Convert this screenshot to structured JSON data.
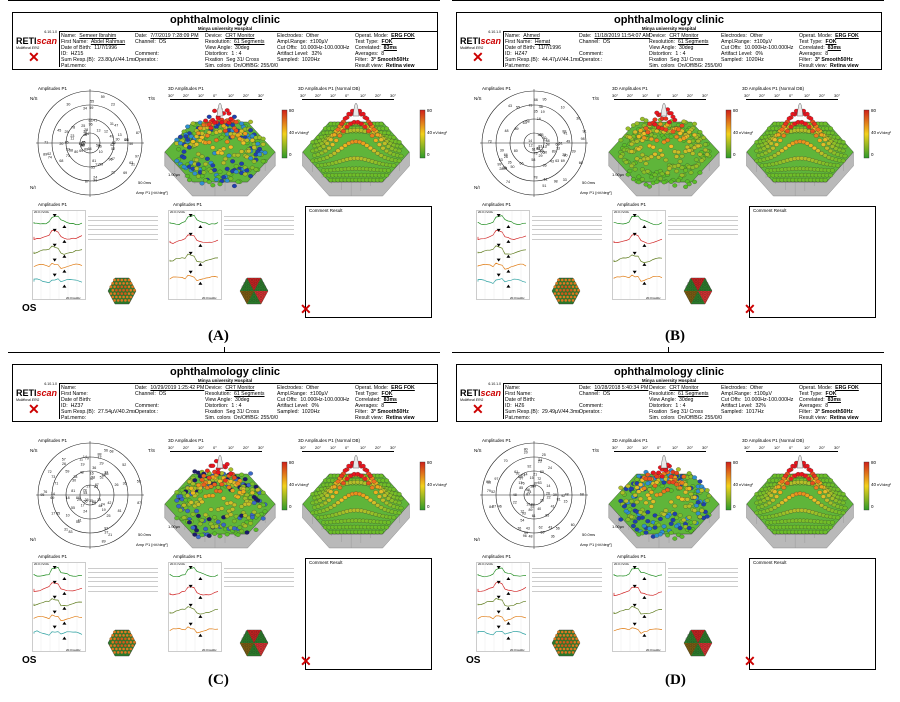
{
  "common": {
    "clinic": "ophthalmology clinic",
    "hospital": "Minya university Hospital",
    "version": "6.10.1.0",
    "brand_a": "RETI",
    "brand_b": "scan",
    "brand_sub": "Multifocal ERG",
    "labels": {
      "name": "Name:",
      "first_name": "First Name:",
      "dob": "Date of Birth:",
      "id": "ID:",
      "sum_resp": "Sum Resp.(B):",
      "pat_memo": "Pat.memo:",
      "date": "Date:",
      "channel": "Channel:",
      "comment": "Comment:",
      "operator": "Operator.:",
      "device": "Device:",
      "resolution": "Resolution:",
      "view_angle": "View Angle:",
      "distortion": "Distortion:",
      "fixation": "Fixation",
      "sim_colors": "Sim. colors",
      "electrodes": "Electrodes:",
      "ampl_range": "Ampl.Range:",
      "cut_offs": "Cut Offs:",
      "artifact": "Artifact Level:",
      "sampled": "Sampled:",
      "onoff": "On/Off/BG:",
      "operat_mode": "Operat. Mode:",
      "test_type": "Test Type:",
      "correlated": "Correlated:",
      "averages": "Averages:",
      "filter": "Filter:",
      "result_view": "Result view:"
    },
    "values": {
      "device": "CRT Monitor",
      "resolution": "61 Segments",
      "view_angle": "30deg",
      "distortion": "1 : 4",
      "fixation": "Seg 31/ Cross",
      "sim_colors": "On/Off/BG: 255/0/0",
      "electrodes": "Other",
      "ampl_range": "±100µV",
      "cut_offs": "10.000Hz-100.000Hz",
      "operat_mode": "ERG FOK",
      "test_type": "FOK",
      "correlated": "83ms",
      "averages": "8",
      "filter": "3° Smooth50Hz",
      "result_view": "Retina view"
    },
    "plot_titles": {
      "amp": "Amplitudes P1",
      "amp3d": "3D Amplitudes P1",
      "amp3d_norm": "3D Amplitudes P1 (Normal DB)",
      "comment_result": "Comment Result",
      "ns": "N/S",
      "ts": "T/S",
      "ni": "N/I",
      "unit": "nV/deg²",
      "legend_scale": "50.0ms",
      "legend_amp": "1.00µv",
      "amp_label": "Amp P1 [nV/deg²]",
      "trace_scale": "20.0ms/div",
      "trace_top": "20.0 nV/div"
    },
    "colorbar": [
      "80",
      "40",
      "0"
    ],
    "deg_ticks": [
      "30°",
      "20°",
      "10°",
      "0°",
      "10°",
      "20°",
      "30°"
    ],
    "polar_ticks": [
      "30°",
      "20°",
      "10°"
    ]
  },
  "panels": [
    {
      "letter": "(A)",
      "name": "Semeer Ibrahim",
      "first_name": "Abdel Rahman",
      "dob": "11/7/1996",
      "id": "HZ15",
      "sum_resp": "23.80µV/44.1ms",
      "date": "7/7/2019 7:28:09 PM",
      "channel": "OS",
      "artifact": "32%",
      "sampled": "1020Hz",
      "eye": "OS"
    },
    {
      "letter": "(B)",
      "name": "Ahmed",
      "first_name": "Hemat",
      "dob": "11/7/1996",
      "id": "HZ47",
      "sum_resp": "44.47µV/44.1ms",
      "date": "11/18/2019 11:54:07 AM",
      "channel": "OS",
      "artifact": "0%",
      "sampled": "1020Hz",
      "eye": ""
    },
    {
      "letter": "(C)",
      "name": "",
      "first_name": "",
      "dob": "",
      "id": "HZ37",
      "sum_resp": "27.54µV/40.2ms",
      "date": "10/29/2019 1:25:42 PM",
      "channel": "OS",
      "artifact": "0%",
      "sampled": "1020Hz",
      "eye": "OS"
    },
    {
      "letter": "(D)",
      "name": "",
      "first_name": "",
      "dob": "",
      "id": "HZ6",
      "sum_resp": "29.49µV/44.3ms",
      "date": "10/28/2018 5:40:34 PM",
      "channel": "OS",
      "artifact": "32%",
      "sampled": "1017Hz",
      "eye": "OS"
    }
  ]
}
